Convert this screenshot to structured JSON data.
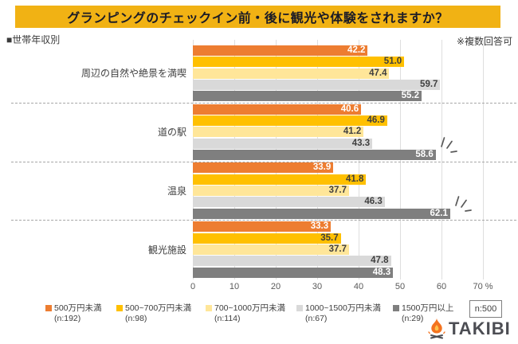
{
  "header": {
    "title": "グランピングのチェックイン前・後に観光や体験をされますか？",
    "breakdown_label": "■世帯年収別",
    "note": "※複数回答可"
  },
  "chart_data": {
    "type": "bar",
    "orientation": "horizontal",
    "title": "グランピングのチェックイン前・後に観光や体験をされますか？",
    "categories": [
      "周辺の自然や絶景を満喫",
      "道の駅",
      "温泉",
      "観光施設"
    ],
    "series": [
      {
        "name": "500万円未満",
        "n_label": "(n:192)",
        "color": "#ED7D31",
        "value_color": "#FFFFFF",
        "values": [
          42.2,
          40.6,
          33.9,
          33.3
        ]
      },
      {
        "name": "500~700万円未満",
        "n_label": "(n:98)",
        "color": "#FFC000",
        "value_color": "#3F3F3F",
        "values": [
          51.0,
          46.9,
          41.8,
          35.7
        ]
      },
      {
        "name": "700~1000万円未満",
        "n_label": "(n:114)",
        "color": "#FFE699",
        "value_color": "#3F3F3F",
        "values": [
          47.4,
          41.2,
          37.7,
          37.7
        ]
      },
      {
        "name": "1000~1500万円未満",
        "n_label": "(n:67)",
        "color": "#D9D9D9",
        "value_color": "#3F3F3F",
        "values": [
          59.7,
          43.3,
          46.3,
          47.8
        ]
      },
      {
        "name": "1500万円以上",
        "n_label": "(n:29)",
        "color": "#7F7F7F",
        "value_color": "#FFFFFF",
        "values": [
          55.2,
          58.6,
          62.1,
          48.3
        ]
      }
    ],
    "x_ticks": [
      0,
      10,
      20,
      30,
      40,
      50,
      60,
      70
    ],
    "x_unit": "%",
    "xlim": [
      0,
      70
    ],
    "grid": true,
    "legend_position": "bottom",
    "value_decimals": 1,
    "emphasis_marks": [
      {
        "category": "道の駅",
        "series": "1500万円以上",
        "category_index": 1,
        "series_index": 4
      },
      {
        "category": "温泉",
        "series": "1500万円以上",
        "category_index": 2,
        "series_index": 4
      }
    ]
  },
  "footer": {
    "total_note": "n:500",
    "logo_text": "TAKIBI"
  },
  "colors": {
    "title_bg": "#F1B214",
    "title_text": "#1B1B26",
    "grid": "#DEDEDE",
    "separator": "#A6A6A6",
    "tick_text": "#595959",
    "category_text": "#404040",
    "legend_text": "#404040",
    "emphasis": "#595959",
    "note_box_border": "#7F7F7F",
    "logo_text_color": "#4C4D53",
    "flame": "#F4731F",
    "flame_inner": "#FFC24B",
    "logs": "#4C4D53"
  }
}
